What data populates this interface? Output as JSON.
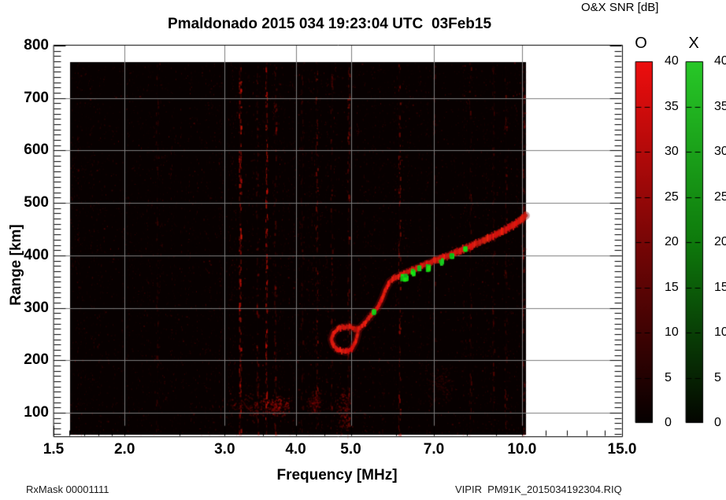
{
  "header": {
    "title": "Pmaldonado 2015 034 19:23:04 UTC",
    "date": "03Feb15"
  },
  "footer": {
    "rx_mask": "RxMask 00001111",
    "file": "VIPIR  PM91K_2015034192304.RIQ"
  },
  "colorbar": {
    "title": "O&X SNR [dB]",
    "o_label": "O",
    "x_label": "X",
    "ticks": [
      40,
      35,
      30,
      25,
      20,
      15,
      10,
      5,
      0
    ],
    "o_colors": {
      "max": "#ee0e0e",
      "mid": "#780606",
      "min": "#060000"
    },
    "x_colors": {
      "max": "#28c828",
      "mid": "#0e7a0c",
      "min": "#040500"
    }
  },
  "chart_data": {
    "type": "heatmap",
    "title": "Pmaldonado 2015 034 19:23:04 UTC 03Feb15",
    "xlabel": "Frequency [MHz]",
    "ylabel": "Range [km]",
    "x_scale": "log",
    "x_ticks": [
      1.5,
      2.0,
      3.0,
      4.0,
      5.0,
      7.0,
      10.0,
      15.0
    ],
    "x_minor_ticks": [
      1.6,
      1.7,
      1.8,
      1.9,
      2.5,
      3.5,
      4.5,
      6.0,
      8.0,
      9.0,
      11.0,
      12.0,
      13.0,
      14.0
    ],
    "x_range": [
      1.5,
      15.0
    ],
    "y_ticks": [
      100,
      200,
      300,
      400,
      500,
      600,
      700,
      800
    ],
    "y_range": [
      55,
      800
    ],
    "grid": true,
    "grid_color": "#7c7c7c",
    "snr_range_db": [
      0,
      40
    ],
    "data_extent": {
      "f_mhz": [
        1.61,
        10.16
      ],
      "range_km": [
        58,
        768
      ]
    },
    "o_trace_f_km": [
      [
        5.15,
        258
      ],
      [
        5.3,
        272
      ],
      [
        5.45,
        288
      ],
      [
        5.58,
        301
      ],
      [
        5.68,
        318
      ],
      [
        5.75,
        334
      ],
      [
        5.85,
        350
      ],
      [
        6.0,
        358
      ],
      [
        6.2,
        366
      ],
      [
        6.4,
        372
      ],
      [
        6.6,
        378
      ],
      [
        6.8,
        384
      ],
      [
        7.0,
        390
      ],
      [
        7.3,
        397
      ],
      [
        7.6,
        404
      ],
      [
        7.9,
        412
      ],
      [
        8.2,
        420
      ],
      [
        8.6,
        430
      ],
      [
        9.0,
        440
      ],
      [
        9.4,
        450
      ],
      [
        9.8,
        462
      ],
      [
        10.16,
        476
      ]
    ],
    "o_loop_f_km": [
      [
        5.13,
        260
      ],
      [
        4.95,
        264
      ],
      [
        4.78,
        262
      ],
      [
        4.66,
        252
      ],
      [
        4.62,
        240
      ],
      [
        4.66,
        228
      ],
      [
        4.76,
        219
      ],
      [
        4.9,
        216
      ],
      [
        5.02,
        222
      ],
      [
        5.1,
        236
      ],
      [
        5.14,
        250
      ],
      [
        5.15,
        258
      ]
    ],
    "x_mode_patches_f_km": [
      [
        6.1,
        6.32,
        349,
        366
      ],
      [
        6.36,
        6.5,
        360,
        376
      ],
      [
        6.55,
        6.62,
        374,
        381
      ],
      [
        6.72,
        6.92,
        368,
        384
      ],
      [
        7.12,
        7.3,
        380,
        396
      ],
      [
        7.45,
        7.6,
        394,
        404
      ],
      [
        7.88,
        8.02,
        408,
        417
      ],
      [
        5.45,
        5.5,
        292,
        297
      ]
    ],
    "rfi_lines": [
      {
        "f": 2.28,
        "a": 0.22
      },
      {
        "f": 3.19,
        "a": 0.85
      },
      {
        "f": 3.42,
        "a": 0.35
      },
      {
        "f": 3.55,
        "a": 0.7
      },
      {
        "f": 3.68,
        "a": 0.4
      },
      {
        "f": 4.1,
        "a": 0.25
      },
      {
        "f": 4.35,
        "a": 0.4
      },
      {
        "f": 4.62,
        "a": 0.3
      },
      {
        "f": 4.95,
        "a": 0.45
      },
      {
        "f": 6.08,
        "a": 0.5
      },
      {
        "f": 7.0,
        "a": 0.2
      },
      {
        "f": 8.1,
        "a": 0.3
      },
      {
        "f": 8.9,
        "a": 0.28
      },
      {
        "f": 9.35,
        "a": 0.3
      },
      {
        "f": 10.05,
        "a": 0.45
      }
    ],
    "noise_blobs": [
      {
        "f": 3.35,
        "r": 115,
        "df": 0.45,
        "dr": 30,
        "a": 0.5
      },
      {
        "f": 3.7,
        "r": 112,
        "df": 0.22,
        "dr": 20,
        "a": 0.75
      },
      {
        "f": 4.85,
        "r": 105,
        "df": 0.18,
        "dr": 48,
        "a": 0.5
      },
      {
        "f": 4.3,
        "r": 120,
        "df": 0.14,
        "dr": 25,
        "a": 0.35
      },
      {
        "f": 7.2,
        "r": 155,
        "df": 0.4,
        "dr": 42,
        "a": 0.22
      }
    ],
    "speckle": {
      "seed": 7,
      "count": 6000,
      "columns": 260
    }
  }
}
